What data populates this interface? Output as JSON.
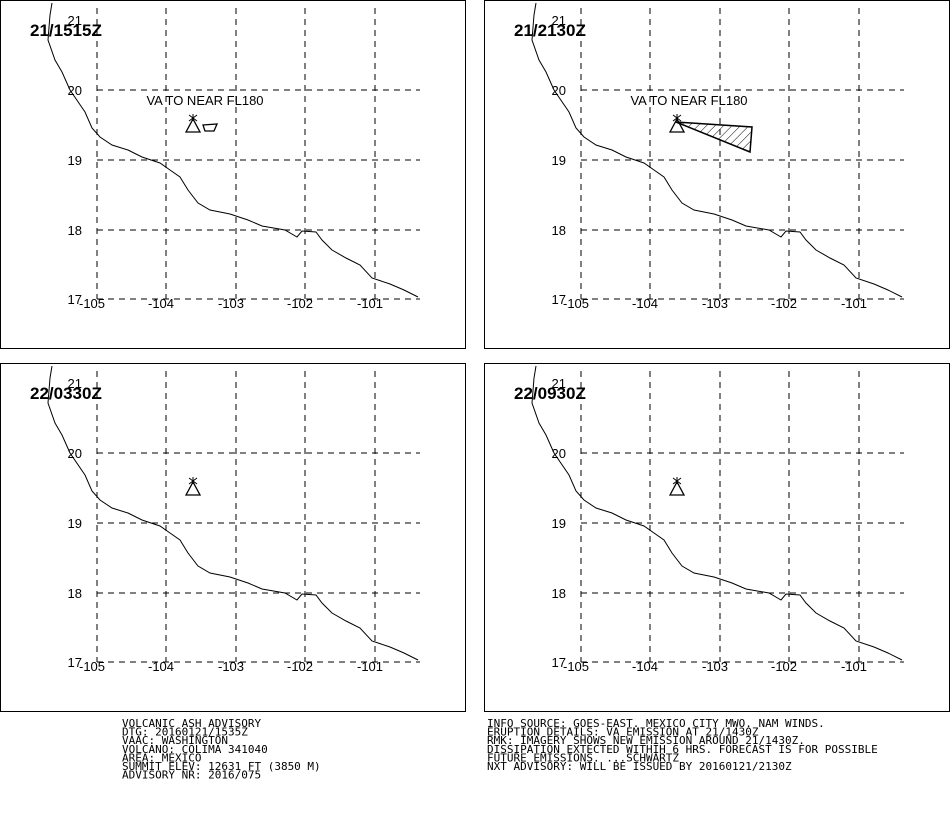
{
  "panels": [
    {
      "time": "21/1515Z",
      "annotation": "VA TO NEAR FL180"
    },
    {
      "time": "21/2130Z",
      "annotation": "VA TO NEAR FL180"
    },
    {
      "time": "22/0330Z"
    },
    {
      "time": "22/0930Z"
    }
  ],
  "lat_labels": [
    "21",
    "20",
    "19",
    "18",
    "17"
  ],
  "lon_labels": [
    "-105",
    "-104",
    "-103",
    "-102",
    "-101"
  ],
  "advisory_left": [
    "VOLCANIC ASH ADVISORY",
    "DTG: 20160121/1535Z",
    "VAAC: WASHINGTON",
    "VOLCANO: COLIMA 341040",
    "AREA: MEXICO",
    "SUMMIT ELEV: 12631 FT (3850 M)",
    "ADVISORY NR: 2016/075"
  ],
  "advisory_right": [
    "INFO SOURCE: GOES-EAST. MEXICO CITY MWO. NAM WINDS.",
    "ERUPTION DETAILS: VA EMISSION AT 21/1430Z",
    "RMK: IMAGERY SHOWS NEW EMISSION AROUND 21/1430Z.",
    "DISSIPATION EXTECTED WITHIH 6 HRS. FORECAST IS FOR POSSIBLE",
    "FUTURE EMISSIONS. ...SCHWARTZ",
    "NXT ADVISORY: WILL BE ISSUED BY 20160121/2130Z"
  ]
}
